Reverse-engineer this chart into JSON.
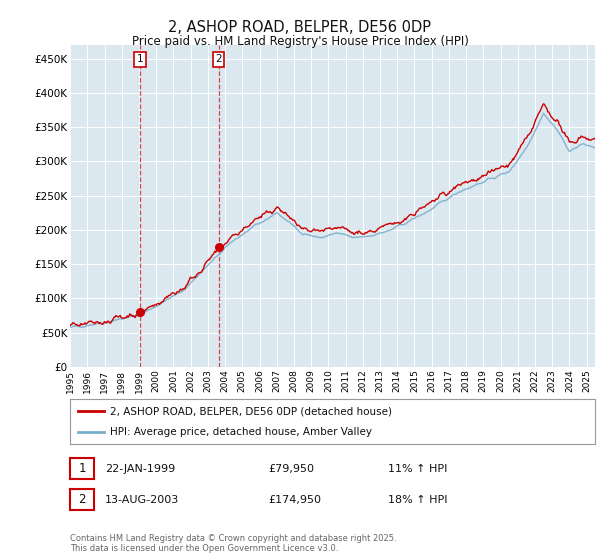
{
  "title": "2, ASHOP ROAD, BELPER, DE56 0DP",
  "subtitle": "Price paid vs. HM Land Registry's House Price Index (HPI)",
  "ylabel_ticks": [
    "£0",
    "£50K",
    "£100K",
    "£150K",
    "£200K",
    "£250K",
    "£300K",
    "£350K",
    "£400K",
    "£450K"
  ],
  "ytick_values": [
    0,
    50000,
    100000,
    150000,
    200000,
    250000,
    300000,
    350000,
    400000,
    450000
  ],
  "ylim": [
    0,
    470000
  ],
  "xlim_start": 1995.0,
  "xlim_end": 2025.5,
  "sale1_year": 1999.06,
  "sale1_price": 79950,
  "sale2_year": 2003.62,
  "sale2_price": 174950,
  "legend_line1": "2, ASHOP ROAD, BELPER, DE56 0DP (detached house)",
  "legend_line2": "HPI: Average price, detached house, Amber Valley",
  "table_row1": [
    "1",
    "22-JAN-1999",
    "£79,950",
    "11% ↑ HPI"
  ],
  "table_row2": [
    "2",
    "13-AUG-2003",
    "£174,950",
    "18% ↑ HPI"
  ],
  "footnote": "Contains HM Land Registry data © Crown copyright and database right 2025.\nThis data is licensed under the Open Government Licence v3.0.",
  "red_color": "#cc0000",
  "blue_color": "#7aadcc",
  "background_color": "#ffffff",
  "plot_bg_color": "#dce8f0"
}
